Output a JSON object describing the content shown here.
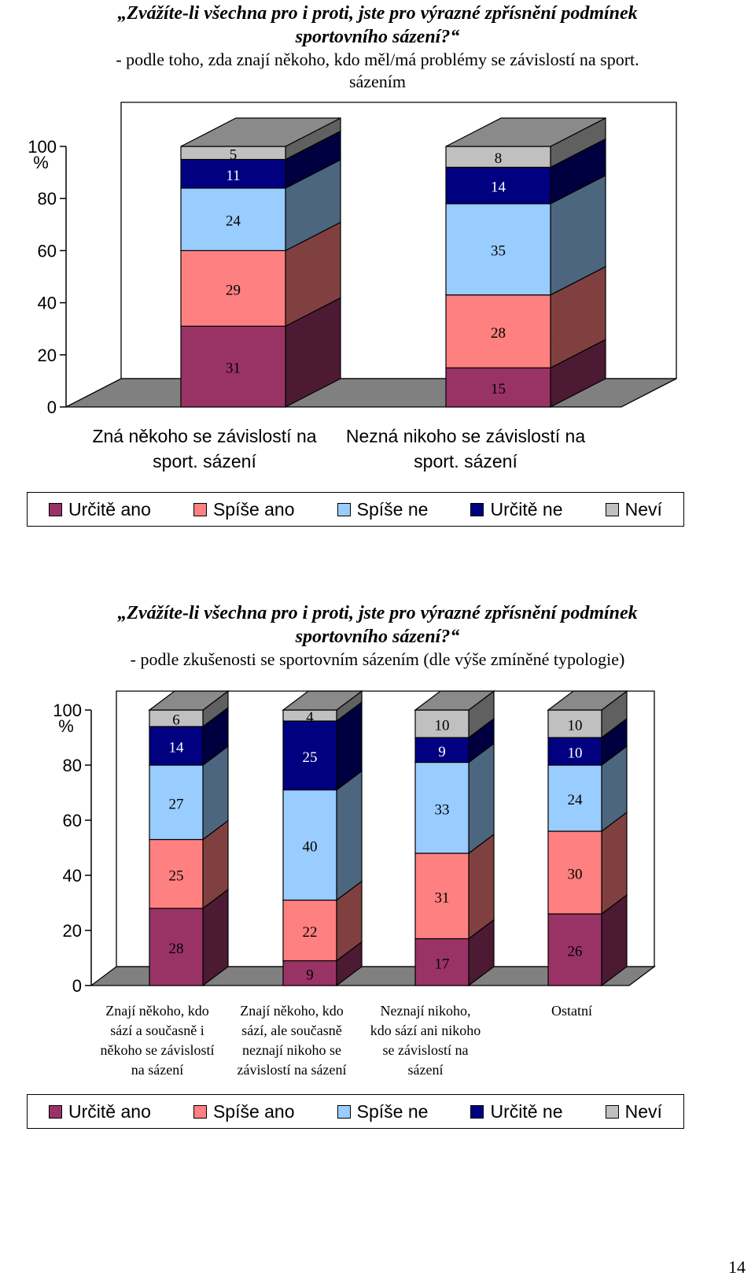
{
  "chart1": {
    "title_line1": "„Zvážíte-li všechna pro i proti, jste pro výrazné zpřísnění podmínek",
    "title_line2": "sportovního sázení?“",
    "subtitle_line1": "- podle toho, zda znají někoho, kdo měl/má problémy se závislostí na sport.",
    "subtitle_line2": "sázením"
  },
  "chart2": {
    "title_line1": "„Zvážíte-li všechna pro i proti, jste pro výrazné zpřísnění podmínek",
    "title_line2": "sportovního sázení?“",
    "subtitle_line1": "- podle zkušenosti se sportovním sázením (dle výše zmíněné typologie)"
  },
  "legend": [
    "Určitě ano",
    "Spíše ano",
    "Spíše ne",
    "Určitě ne",
    "Neví"
  ],
  "colors": {
    "front": [
      "#993366",
      "#ff8080",
      "#99ccff",
      "#000080",
      "#c0c0c0"
    ],
    "side": [
      "#4d1a33",
      "#804040",
      "#4d6680",
      "#000040",
      "#606060"
    ],
    "top": [
      "#66223f",
      "#b35a5a",
      "#6b8fb3",
      "#00004d",
      "#8a8a8a"
    ],
    "floor": "#808080"
  },
  "page_number": "14",
  "chart_data": [
    {
      "type": "bar",
      "stacked": true,
      "three_d": true,
      "ylabel": "%",
      "ylim": [
        0,
        100
      ],
      "yticks": [
        0,
        20,
        40,
        60,
        80,
        100
      ],
      "categories": [
        [
          "Zná někoho se závislostí na",
          "sport. sázení"
        ],
        [
          "Nezná nikoho se závislostí na",
          "sport. sázení"
        ]
      ],
      "series": [
        {
          "name": "Určitě ano",
          "values": [
            31,
            15
          ]
        },
        {
          "name": "Spíše ano",
          "values": [
            29,
            28
          ]
        },
        {
          "name": "Spíše ne",
          "values": [
            24,
            35
          ]
        },
        {
          "name": "Určitě ne",
          "values": [
            11,
            14
          ]
        },
        {
          "name": "Neví",
          "values": [
            5,
            8
          ]
        }
      ]
    },
    {
      "type": "bar",
      "stacked": true,
      "three_d": true,
      "ylabel": "%",
      "ylim": [
        0,
        100
      ],
      "yticks": [
        0,
        20,
        40,
        60,
        80,
        100
      ],
      "categories": [
        [
          "Znají někoho, kdo",
          "sází a současně i",
          "někoho se závislostí",
          "na sázení"
        ],
        [
          "Znají někoho, kdo",
          "sází, ale současně",
          "neznají nikoho se",
          "závislostí na sázení"
        ],
        [
          "Neznají nikoho,",
          "kdo sází ani nikoho",
          "se závislostí na",
          "sázení"
        ],
        [
          "Ostatní"
        ]
      ],
      "series": [
        {
          "name": "Určitě ano",
          "values": [
            28,
            9,
            17,
            26
          ]
        },
        {
          "name": "Spíše ano",
          "values": [
            25,
            22,
            31,
            30
          ]
        },
        {
          "name": "Spíše ne",
          "values": [
            27,
            40,
            33,
            24
          ]
        },
        {
          "name": "Určitě ne",
          "values": [
            14,
            25,
            9,
            10
          ]
        },
        {
          "name": "Neví",
          "values": [
            6,
            4,
            10,
            10
          ]
        }
      ]
    }
  ]
}
